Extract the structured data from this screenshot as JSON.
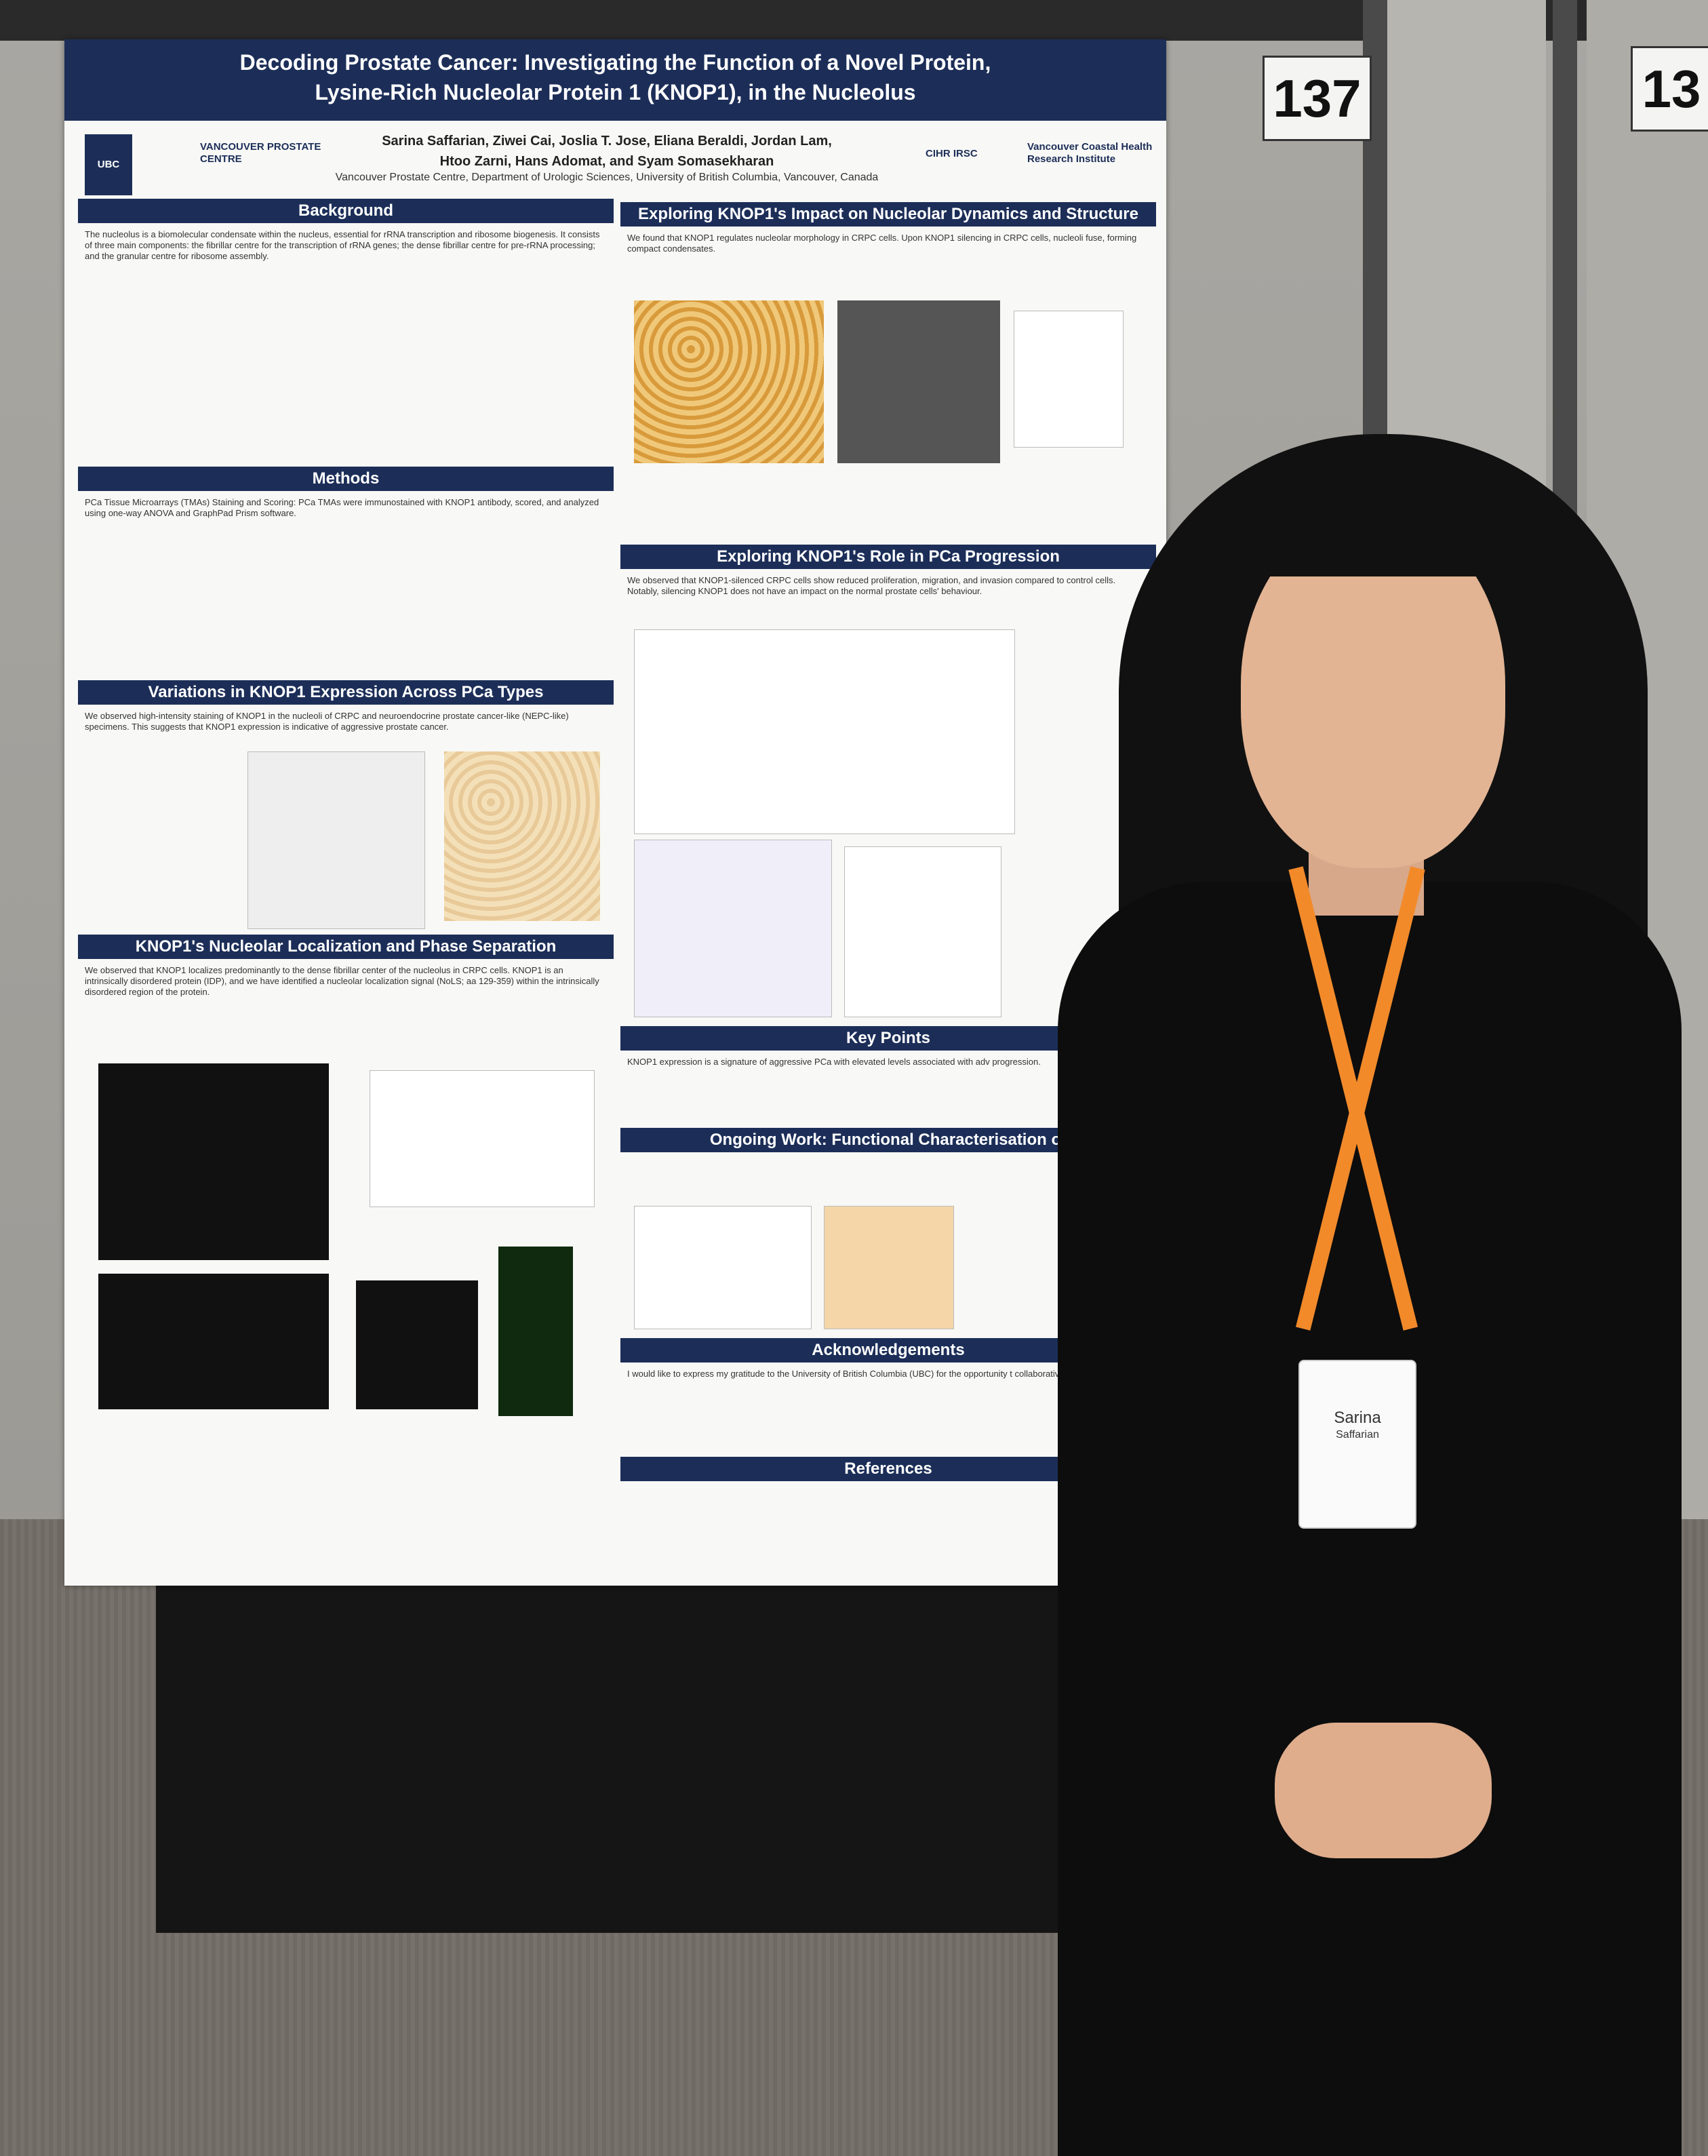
{
  "booth": {
    "left_number": "137",
    "right_number": "13"
  },
  "poster": {
    "title_line1": "Decoding Prostate Cancer: Investigating the Function of a Novel Protein,",
    "title_line2": "Lysine-Rich Nucleolar Protein 1 (KNOP1), in the Nucleolus",
    "authors_line1": "Sarina Saffarian, Ziwei Cai, Joslia T. Jose, Eliana Beraldi, Jordan Lam,",
    "authors_line2": "Htoo Zarni, Hans Adomat, and Syam Somasekharan",
    "affiliation": "Vancouver Prostate Centre, Department of Urologic Sciences, University of British Columbia, Vancouver, Canada",
    "logos": [
      "UBC",
      "VANCOUVER PROSTATE CENTRE",
      "CIHR IRSC",
      "Vancouver Coastal Health Research Institute"
    ],
    "sections": {
      "background": "Background",
      "methods": "Methods",
      "variations": "Variations in KNOP1 Expression Across PCa Types",
      "localization": "KNOP1's Nucleolar Localization and Phase Separation",
      "nucleolar": "Exploring KNOP1's Impact on Nucleolar Dynamics and Structure",
      "progression": "Exploring KNOP1's Role in PCa Progression",
      "keypoints": "Key Points",
      "ongoing": "Ongoing Work: Functional Characterisation of",
      "ack": "Acknowledgements",
      "refs": "References"
    },
    "background_text": "The nucleolus is a biomolecular condensate within the nucleus, essential for rRNA transcription and ribosome biogenesis. It consists of three main components: the fibrillar centre for the transcription of rRNA genes; the dense fibrillar centre for pre-rRNA processing; and the granular centre for ribosome assembly.",
    "methods_text": "PCa Tissue Microarrays (TMAs) Staining and Scoring: PCa TMAs were immunostained with KNOP1 antibody, scored, and analyzed using one-way ANOVA and GraphPad Prism software.",
    "variations_text": "We observed high-intensity staining of KNOP1 in the nucleoli of CRPC and neuroendocrine prostate cancer-like (NEPC-like) specimens. This suggests that KNOP1 expression is indicative of aggressive prostate cancer.",
    "localization_text": "We observed that KNOP1 localizes predominantly to the dense fibrillar center of the nucleolus in CRPC cells. KNOP1 is an intrinsically disordered protein (IDP), and we have identified a nucleolar localization signal (NoLS; aa 129-359) within the intrinsically disordered region of the protein.",
    "nucleolar_text": "We found that KNOP1 regulates nucleolar morphology in CRPC cells. Upon KNOP1 silencing in CRPC cells, nucleoli fuse, forming compact condensates.",
    "progression_text": "We observed that KNOP1-silenced CRPC cells show reduced proliferation, migration, and invasion compared to control cells. Notably, silencing KNOP1 does not have an impact on the normal prostate cells' behaviour.",
    "keypoints_text": "KNOP1 expression is a signature of aggressive PCa with elevated levels associated with adv progression.",
    "ack_text": "I would like to express my gratitude to the University of British Columbia (UBC) for the opportunity t collaborative environment."
  },
  "badge": {
    "first_name": "Sarina",
    "last_name": "Saffarian"
  }
}
